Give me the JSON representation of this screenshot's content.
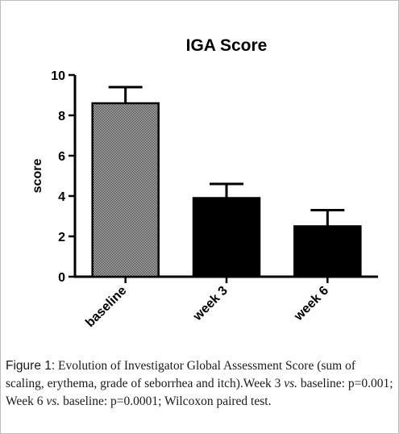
{
  "chart_data": {
    "type": "bar",
    "title": "IGA Score",
    "ylabel": "score",
    "xlabel": "",
    "categories": [
      "baseline",
      "week 3",
      "week 6"
    ],
    "values": [
      8.6,
      3.9,
      2.5
    ],
    "error_upper": [
      9.4,
      4.6,
      3.3
    ],
    "ylim": [
      0,
      10
    ],
    "yticks": [
      "0",
      "2",
      "4",
      "6",
      "8",
      "10"
    ],
    "bar_fills": [
      "checker",
      "#000000",
      "#000000"
    ],
    "grid": false,
    "legend": "none"
  },
  "caption": {
    "label": "Figure 1:",
    "part1": " Evolution of Investigator Global Assessment Score (sum of scaling, erythema, grade of seborrhea and itch).Week 3 ",
    "vs1": "vs.",
    "part2": " baseline: p=0.001; Week 6 ",
    "vs2": "vs.",
    "part3": " baseline: p=0.0001; Wilcoxon paired test."
  }
}
